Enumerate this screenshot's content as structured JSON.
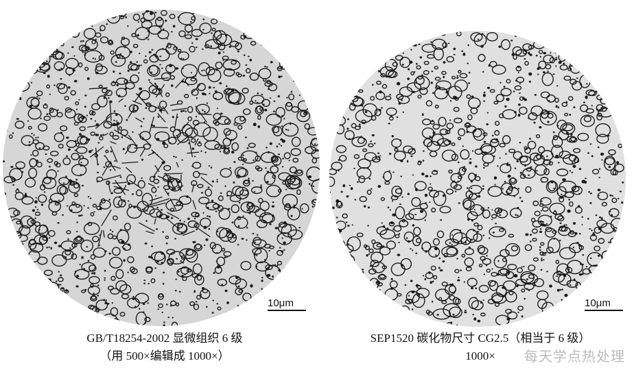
{
  "left_panel": {
    "scale_label": "10μm",
    "caption_line1": "GB/T18254-2002 显微组织 6 级",
    "caption_line2": "（用 500×编辑成 1000×）"
  },
  "right_panel": {
    "scale_label": "10μm",
    "caption_line1": "SEP1520 碳化物尺寸 CG2.5（相当于 6 级）",
    "caption_line2": "1000×"
  },
  "watermark": "每天学点热处理",
  "colors": {
    "background": "#dcdcdc",
    "carbide": "#1a1a1a"
  }
}
